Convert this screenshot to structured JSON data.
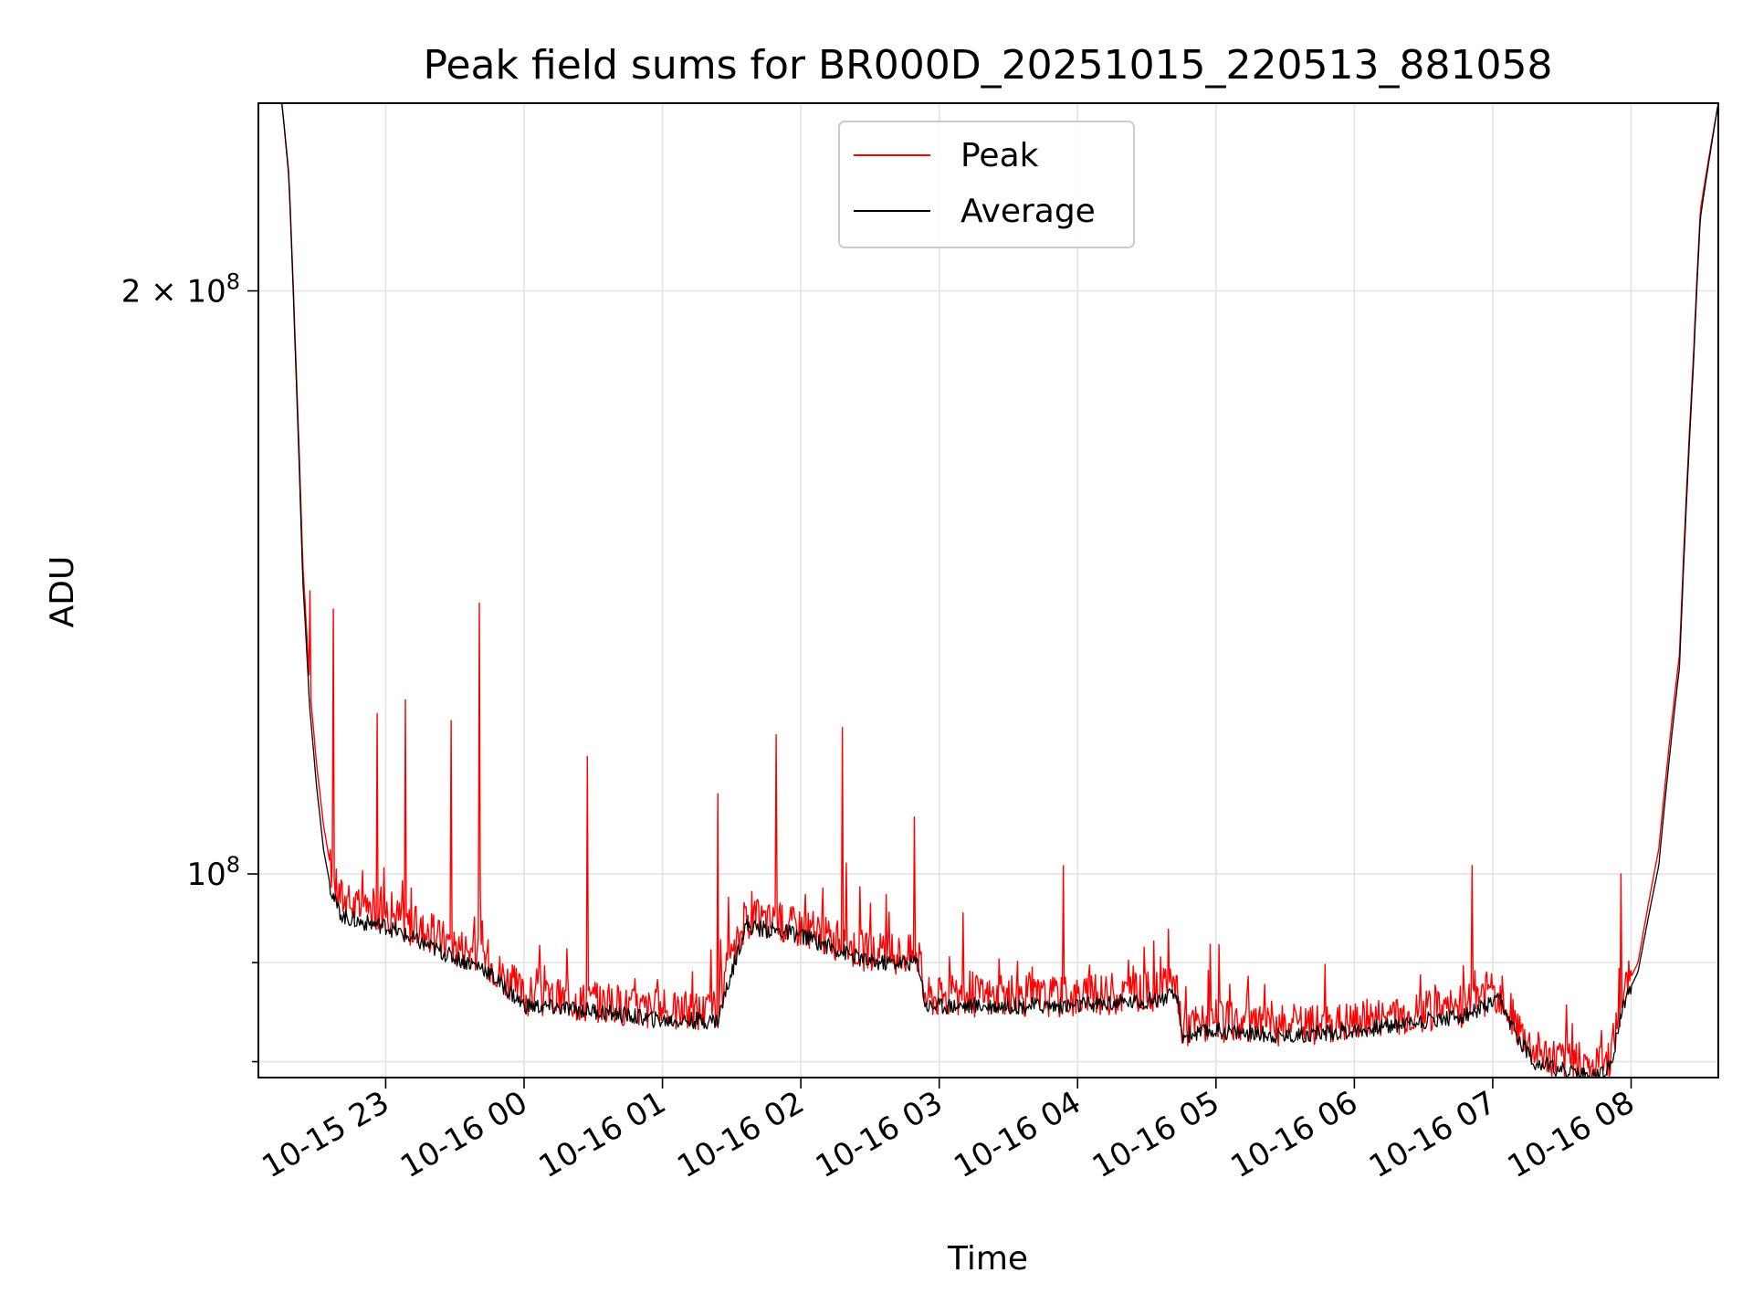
{
  "chart_data": {
    "type": "line",
    "title": "Peak field sums for BR000D_20251015_220513_881058",
    "xlabel": "Time",
    "ylabel": "ADU",
    "y_scale": "log",
    "ylim": [
      78500000,
      250000000
    ],
    "xlim_hours": [
      -1.92,
      8.63
    ],
    "grid": true,
    "legend_position": "upper center",
    "x_ticks": [
      {
        "hour": -1,
        "label": "10-15 23"
      },
      {
        "hour": 0,
        "label": "10-16 00"
      },
      {
        "hour": 1,
        "label": "10-16 01"
      },
      {
        "hour": 2,
        "label": "10-16 02"
      },
      {
        "hour": 3,
        "label": "10-16 03"
      },
      {
        "hour": 4,
        "label": "10-16 04"
      },
      {
        "hour": 5,
        "label": "10-16 05"
      },
      {
        "hour": 6,
        "label": "10-16 06"
      },
      {
        "hour": 7,
        "label": "10-16 07"
      },
      {
        "hour": 8,
        "label": "10-16 08"
      }
    ],
    "y_ticks": [
      {
        "value": 100000000,
        "base": "10",
        "exp": "8",
        "coef": ""
      },
      {
        "value": 200000000,
        "base": "10",
        "exp": "8",
        "coef": "2 × "
      }
    ],
    "y_minor_ticks": [
      80000000,
      90000000
    ],
    "series": [
      {
        "name": "Peak",
        "color": "#ff0000",
        "hours": [
          -1.92,
          -1.75,
          -1.7,
          -1.65,
          -1.6,
          -1.55,
          -1.5,
          -1.45,
          -1.4,
          -1.35,
          -1.3,
          -1.2,
          -1.0,
          -0.8,
          -0.5,
          -0.3,
          0.0,
          0.5,
          1.0,
          1.4,
          1.6,
          2.0,
          2.5,
          2.85,
          2.9,
          3.5,
          4.0,
          4.5,
          4.72,
          4.75,
          5.0,
          5.5,
          6.0,
          6.5,
          6.8,
          7.05,
          7.15,
          7.3,
          7.7,
          7.85,
          7.95,
          8.05,
          8.2,
          8.35,
          8.45,
          8.5,
          8.63
        ],
        "values": [
          250000000,
          250000000,
          230000000,
          185000000,
          145000000,
          125000000,
          114000000,
          106000000,
          101000000,
          98000000,
          97000000,
          96000000,
          96000000,
          94000000,
          92000000,
          91000000,
          86500000,
          86000000,
          85000000,
          85000000,
          95000000,
          94000000,
          91000000,
          91000000,
          86500000,
          86500000,
          86500000,
          87000000,
          87500000,
          83500000,
          84000000,
          83500000,
          84000000,
          85000000,
          85500000,
          87000000,
          84000000,
          81000000,
          79500000,
          80500000,
          87000000,
          90000000,
          103000000,
          130000000,
          185000000,
          220000000,
          250000000
        ],
        "spikes": [
          {
            "hour": -1.55,
            "value": 140000000
          },
          {
            "hour": -1.38,
            "value": 137000000
          },
          {
            "hour": -1.06,
            "value": 121000000
          },
          {
            "hour": -0.86,
            "value": 123000000
          },
          {
            "hour": -0.53,
            "value": 120000000
          },
          {
            "hour": -0.32,
            "value": 138000000
          },
          {
            "hour": 0.46,
            "value": 115000000
          },
          {
            "hour": 1.4,
            "value": 110000000
          },
          {
            "hour": 1.82,
            "value": 118000000
          },
          {
            "hour": 2.3,
            "value": 119000000
          },
          {
            "hour": 2.82,
            "value": 107000000
          },
          {
            "hour": 3.9,
            "value": 101000000
          },
          {
            "hour": 6.85,
            "value": 101000000
          },
          {
            "hour": 7.93,
            "value": 100000000
          }
        ]
      },
      {
        "name": "Average",
        "color": "#000000",
        "hours": [
          -1.92,
          -1.75,
          -1.7,
          -1.65,
          -1.6,
          -1.55,
          -1.5,
          -1.45,
          -1.4,
          -1.35,
          -1.3,
          -1.2,
          -1.0,
          -0.8,
          -0.5,
          -0.3,
          0.0,
          0.5,
          1.0,
          1.4,
          1.6,
          2.0,
          2.5,
          2.85,
          2.9,
          3.5,
          4.0,
          4.5,
          4.72,
          4.75,
          5.0,
          5.5,
          6.0,
          6.5,
          6.8,
          7.05,
          7.15,
          7.3,
          7.7,
          7.85,
          7.95,
          8.05,
          8.2,
          8.35,
          8.45,
          8.5,
          8.63
        ],
        "values": [
          250000000,
          250000000,
          229000000,
          183000000,
          142000000,
          122000000,
          111000000,
          103000000,
          98500000,
          96000000,
          95000000,
          94500000,
          94000000,
          92500000,
          90500000,
          89500000,
          85500000,
          85000000,
          84000000,
          84000000,
          94000000,
          93000000,
          90000000,
          90000000,
          85500000,
          85500000,
          85500000,
          86000000,
          86500000,
          82500000,
          83000000,
          82500000,
          83000000,
          84000000,
          84500000,
          86000000,
          83000000,
          80000000,
          78500000,
          79500000,
          86000000,
          89000000,
          101000000,
          128000000,
          183000000,
          218000000,
          250000000
        ]
      }
    ]
  },
  "legend": [
    {
      "label": "Peak",
      "color": "#ff0000"
    },
    {
      "label": "Average",
      "color": "#000000"
    }
  ]
}
